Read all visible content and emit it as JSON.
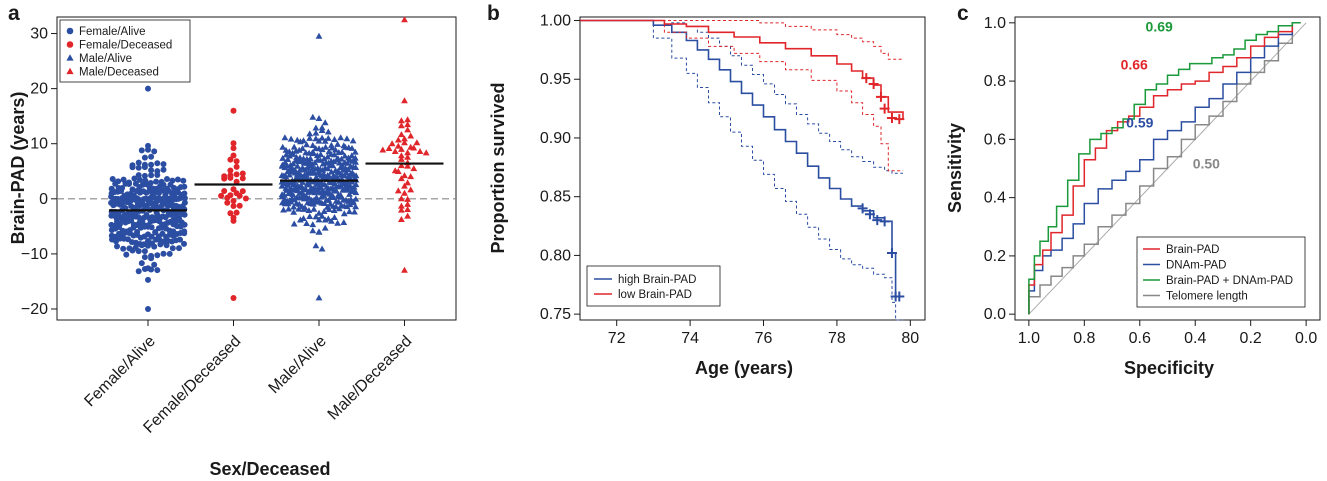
{
  "panels": {
    "a": {
      "letter": "a",
      "chart_data": {
        "type": "scatter",
        "subtype": "beeswarm",
        "ylabel": "Brain-PAD (years)",
        "xlabel": "Sex/Deceased",
        "categories": [
          "Female/Alive",
          "Female/Deceased",
          "Male/Alive",
          "Male/Deceased"
        ],
        "ylim": [
          -22,
          33
        ],
        "yticks": [
          -20,
          -10,
          0,
          10,
          20,
          30
        ],
        "reference_line": 0,
        "means": [
          -2.1,
          2.6,
          3.3,
          6.4
        ],
        "series": [
          {
            "name": "Female/Alive",
            "color": "#2b4ea2",
            "marker": "circle",
            "n": 320,
            "min": -20,
            "max": 20,
            "center": -2.1,
            "spread": 7.5
          },
          {
            "name": "Female/Deceased",
            "color": "#e0262a",
            "marker": "circle",
            "n": 34,
            "min": -18,
            "max": 16,
            "center": 2.6,
            "spread": 9
          },
          {
            "name": "Male/Alive",
            "color": "#2b4ea2",
            "marker": "triangle",
            "n": 380,
            "min": -18,
            "max": 29.5,
            "center": 3.3,
            "spread": 8
          },
          {
            "name": "Male/Deceased",
            "color": "#e0262a",
            "marker": "triangle",
            "n": 50,
            "min": -13,
            "max": 32.5,
            "center": 6.4,
            "spread": 9
          }
        ],
        "legend": {
          "position": "top-left",
          "entries": [
            "Female/Alive",
            "Female/Deceased",
            "Male/Alive",
            "Male/Deceased"
          ]
        }
      }
    },
    "b": {
      "letter": "b",
      "chart_data": {
        "type": "line",
        "subtype": "kaplan-meier",
        "xlabel": "Age (years)",
        "ylabel": "Proportion survived",
        "xlim": [
          71,
          80.4
        ],
        "ylim": [
          0.745,
          1.003
        ],
        "xticks": [
          72,
          74,
          76,
          78,
          80
        ],
        "yticks": [
          0.75,
          0.8,
          0.85,
          0.9,
          0.95,
          1.0
        ],
        "series": [
          {
            "name": "high Brain-PAD",
            "color": "#2b4ea2",
            "x": [
              71,
              72.6,
              73.0,
              73.5,
              73.9,
              74.2,
              74.5,
              74.8,
              75.1,
              75.4,
              75.7,
              76.0,
              76.3,
              76.6,
              76.9,
              77.2,
              77.5,
              77.8,
              78.1,
              78.4,
              78.7,
              79.0,
              79.3,
              79.5,
              79.6,
              79.8
            ],
            "y": [
              1.0,
              1.0,
              0.996,
              0.99,
              0.983,
              0.975,
              0.967,
              0.958,
              0.948,
              0.938,
              0.928,
              0.918,
              0.907,
              0.897,
              0.887,
              0.876,
              0.866,
              0.857,
              0.848,
              0.842,
              0.838,
              0.832,
              0.829,
              0.802,
              0.765,
              0.765
            ],
            "ci_upper": [
              1.0,
              1.0,
              1.0,
              0.998,
              0.995,
              0.99,
              0.985,
              0.978,
              0.97,
              0.962,
              0.954,
              0.946,
              0.937,
              0.929,
              0.92,
              0.912,
              0.904,
              0.897,
              0.89,
              0.884,
              0.88,
              0.875,
              0.872,
              0.87,
              0.87,
              0.87
            ],
            "ci_lower": [
              1.0,
              1.0,
              0.985,
              0.968,
              0.955,
              0.943,
              0.93,
              0.918,
              0.905,
              0.893,
              0.881,
              0.869,
              0.857,
              0.846,
              0.835,
              0.824,
              0.814,
              0.805,
              0.797,
              0.792,
              0.789,
              0.784,
              0.781,
              0.76,
              0.745,
              0.745
            ],
            "censor_x": [
              78.7,
              78.9,
              79.1,
              79.3,
              79.5,
              79.6,
              79.7
            ],
            "censor_y": [
              0.84,
              0.835,
              0.83,
              0.829,
              0.802,
              0.765,
              0.765
            ]
          },
          {
            "name": "low Brain-PAD",
            "color": "#e0262a",
            "x": [
              71,
              72.8,
              73.3,
              73.9,
              74.5,
              75.2,
              75.9,
              76.6,
              77.3,
              78.0,
              78.4,
              78.7,
              79.0,
              79.2,
              79.4,
              79.8
            ],
            "y": [
              1.0,
              1.0,
              0.997,
              0.995,
              0.99,
              0.986,
              0.981,
              0.976,
              0.97,
              0.963,
              0.957,
              0.951,
              0.945,
              0.935,
              0.922,
              0.916
            ],
            "ci_upper": [
              1.0,
              1.0,
              1.0,
              1.0,
              1.0,
              1.0,
              0.998,
              0.995,
              0.992,
              0.988,
              0.985,
              0.982,
              0.978,
              0.972,
              0.967,
              0.967
            ],
            "ci_lower": [
              1.0,
              1.0,
              0.99,
              0.985,
              0.978,
              0.972,
              0.965,
              0.958,
              0.949,
              0.94,
              0.93,
              0.92,
              0.91,
              0.895,
              0.872,
              0.872
            ],
            "censor_x": [
              78.8,
              79.0,
              79.2,
              79.3,
              79.5,
              79.7
            ],
            "censor_y": [
              0.951,
              0.946,
              0.935,
              0.925,
              0.917,
              0.916
            ]
          }
        ],
        "legend": {
          "position": "bottom-left",
          "entries": [
            "high Brain-PAD",
            "low Brain-PAD"
          ]
        }
      }
    },
    "c": {
      "letter": "c",
      "chart_data": {
        "type": "line",
        "subtype": "roc",
        "xlabel": "Specificity",
        "ylabel": "Sensitivity",
        "xlim": [
          1.05,
          -0.05
        ],
        "ylim": [
          -0.02,
          1.02
        ],
        "xticks": [
          1.0,
          0.8,
          0.6,
          0.4,
          0.2,
          0.0
        ],
        "yticks": [
          0.0,
          0.2,
          0.4,
          0.6,
          0.8,
          1.0
        ],
        "series": [
          {
            "name": "Brain-PAD",
            "color": "#e0262a",
            "auc_label": "0.66",
            "x": [
              1.0,
              0.98,
              0.95,
              0.92,
              0.88,
              0.84,
              0.8,
              0.76,
              0.72,
              0.68,
              0.64,
              0.6,
              0.55,
              0.5,
              0.45,
              0.4,
              0.35,
              0.3,
              0.25,
              0.2,
              0.15,
              0.1,
              0.05,
              0.02
            ],
            "y": [
              0.0,
              0.1,
              0.17,
              0.22,
              0.28,
              0.34,
              0.44,
              0.53,
              0.57,
              0.63,
              0.66,
              0.68,
              0.71,
              0.75,
              0.77,
              0.79,
              0.8,
              0.83,
              0.85,
              0.88,
              0.92,
              0.95,
              0.97,
              1.0
            ]
          },
          {
            "name": "DNAm-PAD",
            "color": "#2b4ea2",
            "auc_label": "0.59",
            "x": [
              1.0,
              0.98,
              0.95,
              0.92,
              0.88,
              0.84,
              0.8,
              0.75,
              0.7,
              0.65,
              0.6,
              0.55,
              0.5,
              0.45,
              0.4,
              0.35,
              0.3,
              0.25,
              0.2,
              0.15,
              0.1,
              0.05,
              0.02
            ],
            "y": [
              0.0,
              0.08,
              0.15,
              0.2,
              0.22,
              0.26,
              0.31,
              0.38,
              0.43,
              0.46,
              0.49,
              0.53,
              0.6,
              0.63,
              0.66,
              0.71,
              0.74,
              0.79,
              0.83,
              0.88,
              0.92,
              0.96,
              1.0
            ]
          },
          {
            "name": "Brain-PAD + DNAm-PAD",
            "color": "#1a9a3a",
            "auc_label": "0.69",
            "x": [
              1.0,
              0.98,
              0.96,
              0.93,
              0.9,
              0.86,
              0.82,
              0.78,
              0.74,
              0.7,
              0.66,
              0.62,
              0.58,
              0.54,
              0.5,
              0.46,
              0.42,
              0.38,
              0.34,
              0.3,
              0.26,
              0.22,
              0.18,
              0.14,
              0.1,
              0.05,
              0.02
            ],
            "y": [
              0.0,
              0.12,
              0.2,
              0.25,
              0.3,
              0.37,
              0.46,
              0.55,
              0.6,
              0.62,
              0.64,
              0.67,
              0.72,
              0.77,
              0.79,
              0.82,
              0.84,
              0.86,
              0.86,
              0.88,
              0.89,
              0.91,
              0.94,
              0.96,
              0.97,
              0.99,
              1.0
            ]
          },
          {
            "name": "Telomere length",
            "color": "#888888",
            "auc_label": "0.50",
            "x": [
              1.0,
              0.96,
              0.92,
              0.88,
              0.84,
              0.8,
              0.75,
              0.7,
              0.65,
              0.6,
              0.55,
              0.5,
              0.45,
              0.4,
              0.35,
              0.3,
              0.25,
              0.2,
              0.15,
              0.1,
              0.05,
              0.02
            ],
            "y": [
              0.0,
              0.06,
              0.1,
              0.13,
              0.16,
              0.2,
              0.24,
              0.3,
              0.34,
              0.38,
              0.44,
              0.5,
              0.54,
              0.6,
              0.65,
              0.68,
              0.73,
              0.79,
              0.83,
              0.87,
              0.93,
              1.0
            ]
          }
        ],
        "diagonal": true,
        "legend": {
          "position": "bottom-right",
          "entries": [
            "Brain-PAD",
            "DNAm-PAD",
            "Brain-PAD + DNAm-PAD",
            "Telomere length"
          ]
        }
      }
    }
  },
  "colors": {
    "blue": "#2b4ea2",
    "red": "#e0262a",
    "green": "#1a9a3a",
    "grey": "#888888",
    "axis": "#1a1a1a"
  }
}
